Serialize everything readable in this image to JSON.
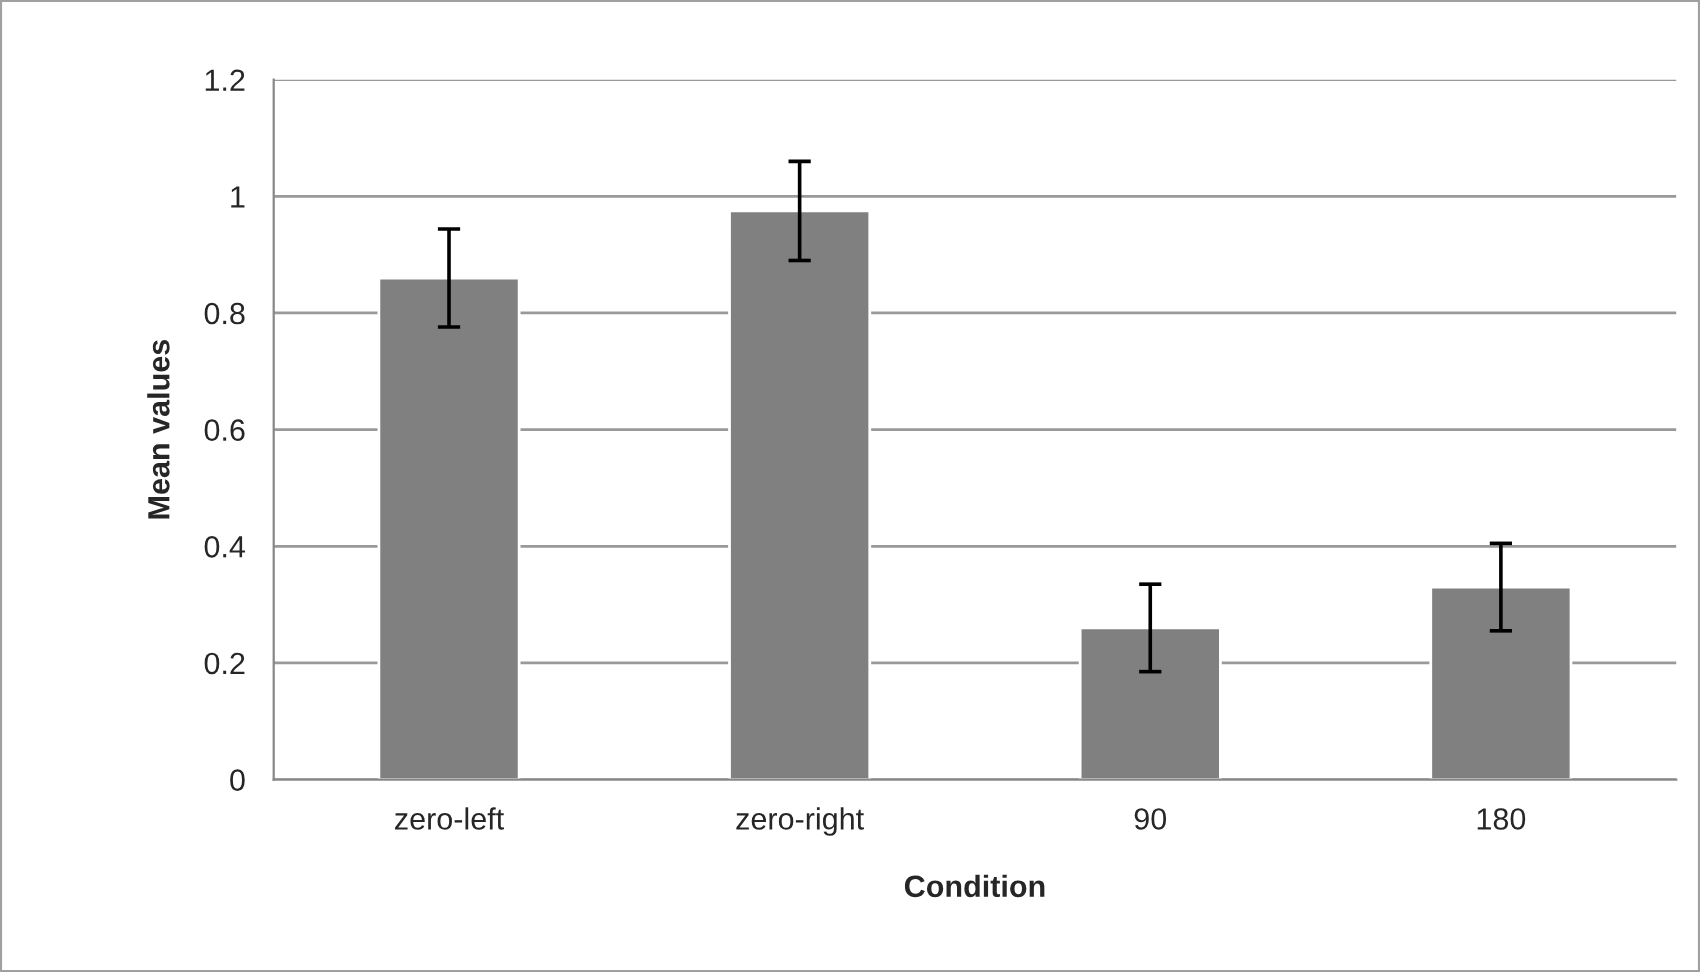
{
  "chart_data": {
    "type": "bar",
    "xlabel": "Condition",
    "ylabel": "Mean values",
    "categories": [
      "zero-left",
      "zero-right",
      "90",
      "180"
    ],
    "values": [
      0.86,
      0.975,
      0.26,
      0.33
    ],
    "errors": [
      0.084,
      0.085,
      0.075,
      0.075
    ],
    "color": "#808080",
    "ylim": [
      0,
      1.2
    ],
    "yticks": [
      0,
      {
        "value": 0.2,
        "label": "0.2"
      },
      {
        "value": 0.4,
        "label": "0.4"
      },
      {
        "value": 0.6,
        "label": "0.6"
      },
      {
        "value": 0.8,
        "label": "0.8"
      },
      1,
      {
        "value": 1.2,
        "label": "1.2"
      }
    ],
    "grid": "y"
  }
}
